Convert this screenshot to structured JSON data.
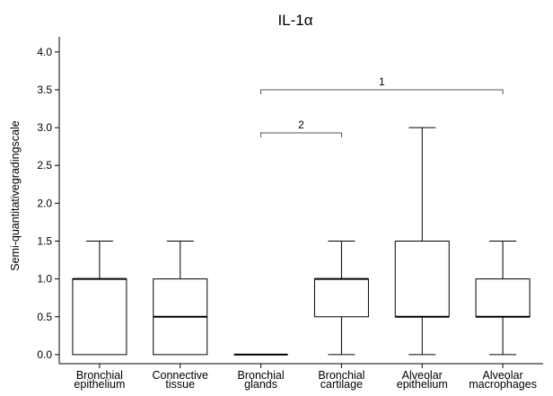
{
  "chart_data": {
    "type": "box",
    "title": "IL-1α",
    "xlabel": "",
    "ylabel": "Semi-quantitativegradingscale",
    "ylim": [
      -0.12,
      4.2
    ],
    "yticks": [
      "0.0",
      "0.5",
      "1.0",
      "1.5",
      "2.0",
      "2.5",
      "3.0",
      "3.5",
      "4.0"
    ],
    "ytick_values": [
      0,
      0.5,
      1.0,
      1.5,
      2.0,
      2.5,
      3.0,
      3.5,
      4.0
    ],
    "grid": false,
    "categories": [
      [
        "Bronchial",
        "epithelium"
      ],
      [
        "Connective",
        "tissue"
      ],
      [
        "Bronchial",
        "glands"
      ],
      [
        "Bronchial",
        "cartilage"
      ],
      [
        "Alveolar",
        "epithelium"
      ],
      [
        "Alveolar",
        "macrophages"
      ]
    ],
    "boxes": [
      {
        "whisker_low": 0.0,
        "q1": 0.0,
        "median": 1.0,
        "q3": 1.0,
        "whisker_high": 1.5
      },
      {
        "whisker_low": 0.0,
        "q1": 0.0,
        "median": 0.5,
        "q3": 1.0,
        "whisker_high": 1.5
      },
      {
        "whisker_low": 0.0,
        "q1": 0.0,
        "median": 0.0,
        "q3": 0.0,
        "whisker_high": 0.0
      },
      {
        "whisker_low": 0.0,
        "q1": 0.5,
        "median": 1.0,
        "q3": 1.0,
        "whisker_high": 1.5
      },
      {
        "whisker_low": 0.0,
        "q1": 0.5,
        "median": 0.5,
        "q3": 1.5,
        "whisker_high": 3.0
      },
      {
        "whisker_low": 0.0,
        "q1": 0.5,
        "median": 0.5,
        "q3": 1.0,
        "whisker_high": 1.5
      }
    ],
    "annotations": [
      {
        "label": "1",
        "from_category": 2,
        "to_category": 5,
        "y": 3.5
      },
      {
        "label": "2",
        "from_category": 2,
        "to_category": 3,
        "y": 2.93
      }
    ]
  }
}
